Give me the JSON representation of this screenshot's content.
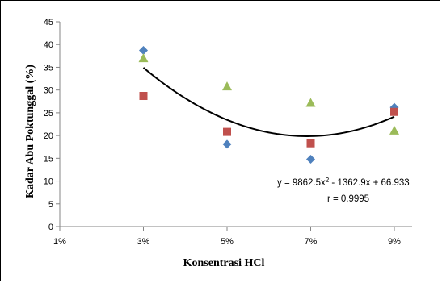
{
  "chart_data": {
    "type": "scatter",
    "title": "",
    "xlabel": "Konsentrasi HCl",
    "ylabel": "Kadar Abu Poktunggal (%)",
    "x_categories": [
      "1%",
      "3%",
      "5%",
      "7%",
      "9%"
    ],
    "x_values": [
      0.01,
      0.03,
      0.05,
      0.07,
      0.09
    ],
    "ylim": [
      0,
      45
    ],
    "yticks": [
      0,
      5,
      10,
      15,
      20,
      25,
      30,
      35,
      40,
      45
    ],
    "grid": false,
    "legend": "none",
    "series": [
      {
        "marker": "diamond",
        "color": "#4f81bd",
        "x": [
          0.03,
          0.05,
          0.07,
          0.09
        ],
        "y": [
          38.7,
          18.1,
          14.8,
          26.2
        ]
      },
      {
        "marker": "square",
        "color": "#c0504d",
        "x": [
          0.03,
          0.05,
          0.07,
          0.09
        ],
        "y": [
          28.7,
          20.8,
          18.3,
          25.2
        ]
      },
      {
        "marker": "triangle",
        "color": "#9bbb59",
        "x": [
          0.03,
          0.05,
          0.07,
          0.09
        ],
        "y": [
          37.0,
          30.8,
          27.2,
          21.1
        ]
      }
    ],
    "trendline": {
      "type": "polynomial",
      "order": 2,
      "coefficients": [
        9862.5,
        -1362.9,
        66.933
      ],
      "x_range": [
        0.03,
        0.09
      ],
      "color": "#000000"
    },
    "annotations": {
      "equation_lead": "y = 9862.5x",
      "equation_exp": "2",
      "equation_tail": " - 1362.9x + 66.933",
      "r_value": "r = 0.9995"
    }
  }
}
